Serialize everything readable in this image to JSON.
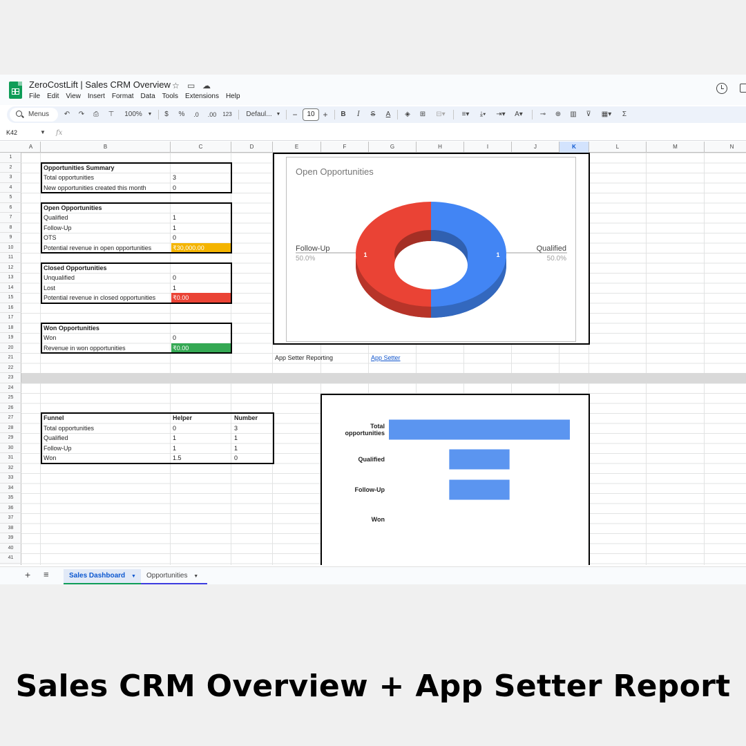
{
  "window": {
    "doc_title": "ZeroCostLift | Sales CRM Overview",
    "menu": [
      "File",
      "Edit",
      "View",
      "Insert",
      "Format",
      "Data",
      "Tools",
      "Extensions",
      "Help"
    ]
  },
  "toolbar": {
    "menus_label": "Menus",
    "zoom": "100%",
    "currency": "$",
    "percent": "%",
    "decrease_decimals": ".0",
    "increase_decimals": ".00",
    "number_format": "123",
    "font": "Defaul...",
    "font_size": "10",
    "minus": "−",
    "plus": "+",
    "bold": "B",
    "italic": "I",
    "strike": "S",
    "text_color": "A",
    "sum": "Σ"
  },
  "formula_bar": {
    "name_box": "K42",
    "fx": "fx"
  },
  "columns": [
    "A",
    "B",
    "C",
    "D",
    "E",
    "F",
    "G",
    "H",
    "I",
    "J",
    "K",
    "L",
    "M",
    "N"
  ],
  "selected_column": "K",
  "rows": [
    "1",
    "2",
    "3",
    "4",
    "5",
    "6",
    "7",
    "8",
    "9",
    "10",
    "11",
    "12",
    "13",
    "14",
    "15",
    "16",
    "17",
    "18",
    "19",
    "20",
    "21",
    "22",
    "23",
    "24",
    "25",
    "26",
    "27",
    "28",
    "29",
    "30",
    "31",
    "32",
    "33",
    "34",
    "35",
    "36",
    "37",
    "38",
    "39",
    "40",
    "41"
  ],
  "summary": {
    "title": "Opportunities Summary",
    "rows": [
      {
        "label": "Total opportunities",
        "value": "3"
      },
      {
        "label": "New opportunities created this month",
        "value": "0"
      }
    ]
  },
  "open": {
    "title": "Open Opportunities",
    "rows": [
      {
        "label": "Qualified",
        "value": "1"
      },
      {
        "label": "Follow-Up",
        "value": "1"
      },
      {
        "label": "OTS",
        "value": "0"
      }
    ],
    "revenue_label": "Potential revenue in open opportunities",
    "revenue_value": "₹30,000.00",
    "revenue_color": "#f4b400"
  },
  "closed": {
    "title": "Closed Opportunities",
    "rows": [
      {
        "label": "Unqualified",
        "value": "0"
      },
      {
        "label": "Lost",
        "value": "1"
      }
    ],
    "revenue_label": "Potential revenue in closed opportunities",
    "revenue_value": "₹0.00",
    "revenue_color": "#ea4335"
  },
  "won": {
    "title": "Won Opportunities",
    "rows": [
      {
        "label": "Won",
        "value": "0"
      }
    ],
    "revenue_label": "Revenue in won opportunities",
    "revenue_value": "₹0.00",
    "revenue_color": "#34a853"
  },
  "app_setter": {
    "label": "App Setter Reporting",
    "link": "App Setter"
  },
  "funnel_table": {
    "headers": [
      "Funnel",
      "Helper",
      "Number"
    ],
    "rows": [
      [
        "Total opportunities",
        "0",
        "3"
      ],
      [
        "Qualified",
        "1",
        "1"
      ],
      [
        "Follow-Up",
        "1",
        "1"
      ],
      [
        "Won",
        "1.5",
        "0"
      ]
    ]
  },
  "chart_data": [
    {
      "type": "pie",
      "title": "Open Opportunities",
      "donut": true,
      "categories": [
        "Qualified",
        "Follow-Up"
      ],
      "values": [
        1,
        1
      ],
      "percent_labels": [
        "50.0%",
        "50.0%"
      ],
      "colors": [
        "#4285f4",
        "#ea4335"
      ]
    },
    {
      "type": "bar",
      "orientation": "horizontal",
      "style": "funnel",
      "categories": [
        "Total opportunities",
        "Qualified",
        "Follow-Up",
        "Won"
      ],
      "helper": [
        0,
        1,
        1,
        1.5
      ],
      "values": [
        3,
        1,
        1,
        0
      ],
      "xlim": [
        0,
        3
      ],
      "color": "#5b95f0"
    }
  ],
  "sheet_tabs": [
    "Sales Dashboard",
    "Opportunities"
  ],
  "caption": "Sales CRM Overview  + App Setter Report"
}
